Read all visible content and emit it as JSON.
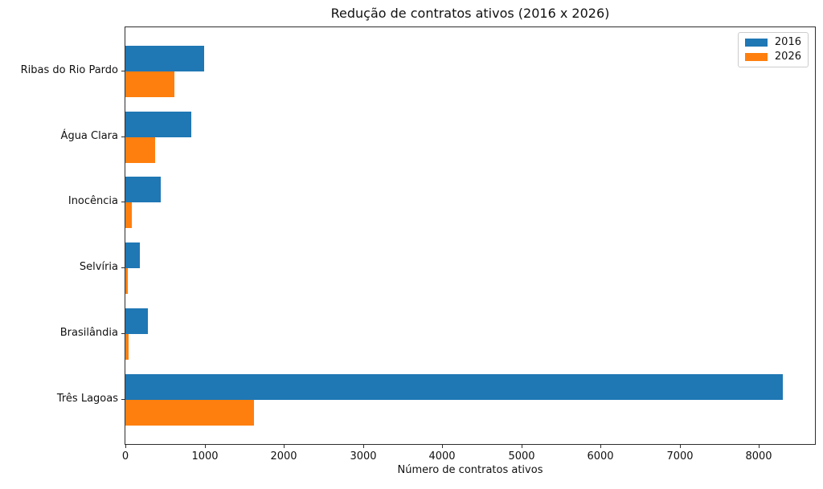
{
  "chart_data": {
    "type": "bar",
    "orientation": "horizontal",
    "title": "Redução de contratos ativos (2016 x 2026)",
    "xlabel": "Número de contratos ativos",
    "ylabel": "",
    "categories": [
      "Ribas do Rio Pardo",
      "Água Clara",
      "Inocência",
      "Selvíria",
      "Brasilândia",
      "Três Lagoas"
    ],
    "series": [
      {
        "name": "2016",
        "color": "#1f77b4",
        "values": [
          990,
          835,
          445,
          180,
          280,
          8300
        ]
      },
      {
        "name": "2026",
        "color": "#ff7f0e",
        "values": [
          620,
          380,
          85,
          30,
          40,
          1620
        ]
      }
    ],
    "xticks": [
      0,
      1000,
      2000,
      3000,
      4000,
      5000,
      6000,
      7000,
      8000
    ],
    "xlim": [
      0,
      8710
    ],
    "grid": false,
    "legend_position": "upper right",
    "background_color": "#ffffff",
    "axis_color": "#2e2e2e"
  }
}
